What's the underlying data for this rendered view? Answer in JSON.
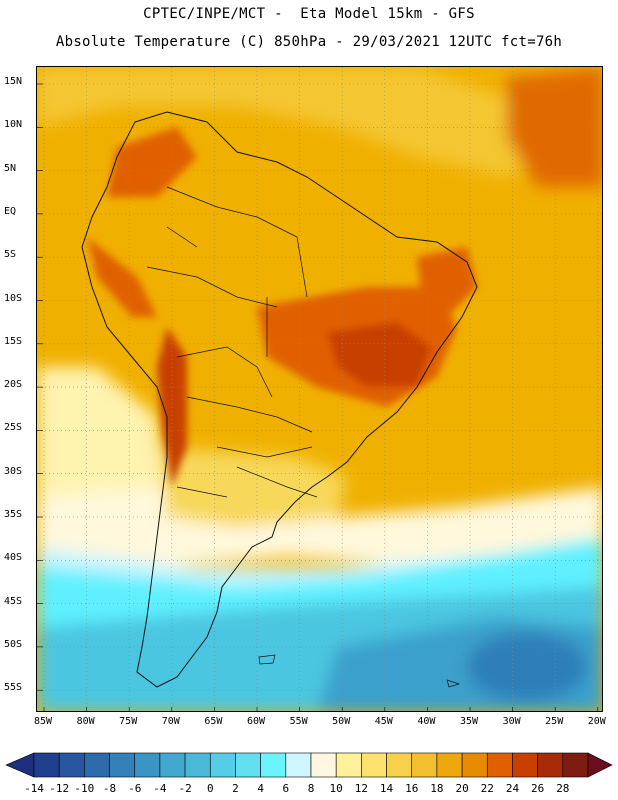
{
  "header": {
    "line1": "CPTEC/INPE/MCT -  Eta Model 15km - GFS",
    "line2": "Absolute Temperature (C) 850hPa - 29/03/2021 12UTC fct=76h"
  },
  "map": {
    "lat_labels": [
      "15N",
      "10N",
      "5N",
      "EQ",
      "5S",
      "10S",
      "15S",
      "20S",
      "25S",
      "30S",
      "35S",
      "40S",
      "45S",
      "50S",
      "55S"
    ],
    "lon_labels": [
      "85W",
      "80W",
      "75W",
      "70W",
      "65W",
      "60W",
      "55W",
      "50W",
      "45W",
      "40W",
      "35W",
      "30W",
      "25W",
      "20W"
    ],
    "colors": {
      "ocean_warm": "#f0b000",
      "land_base": "#eba100",
      "hot": "#e06000",
      "very_hot": "#c84000",
      "yellow": "#f7d85a",
      "pale": "#fff3b0",
      "cream": "#fff8dc",
      "light_cyan": "#c8f4ff",
      "cyan": "#5ef0ff",
      "teal": "#40c8e0",
      "blue": "#3a9cc8",
      "deep_blue": "#2f7fb8"
    }
  },
  "colorbar": {
    "labels": [
      "-14",
      "-12",
      "-10",
      "-8",
      "-6",
      "-4",
      "-2",
      "0",
      "2",
      "4",
      "6",
      "8",
      "10",
      "12",
      "14",
      "16",
      "18",
      "20",
      "22",
      "24",
      "26",
      "28"
    ],
    "colors": [
      "#1f3f8f",
      "#28559f",
      "#2d6aab",
      "#3480b8",
      "#3a94c4",
      "#42a8cf",
      "#4ab9d8",
      "#56cde6",
      "#63e0f0",
      "#6cf4fc",
      "#cdf6ff",
      "#fff7e0",
      "#fff09a",
      "#fbe26e",
      "#f8d14a",
      "#f2bf2f",
      "#eea70c",
      "#e88a00",
      "#e06000",
      "#c84000",
      "#a82b08",
      "#7d1c10"
    ]
  }
}
